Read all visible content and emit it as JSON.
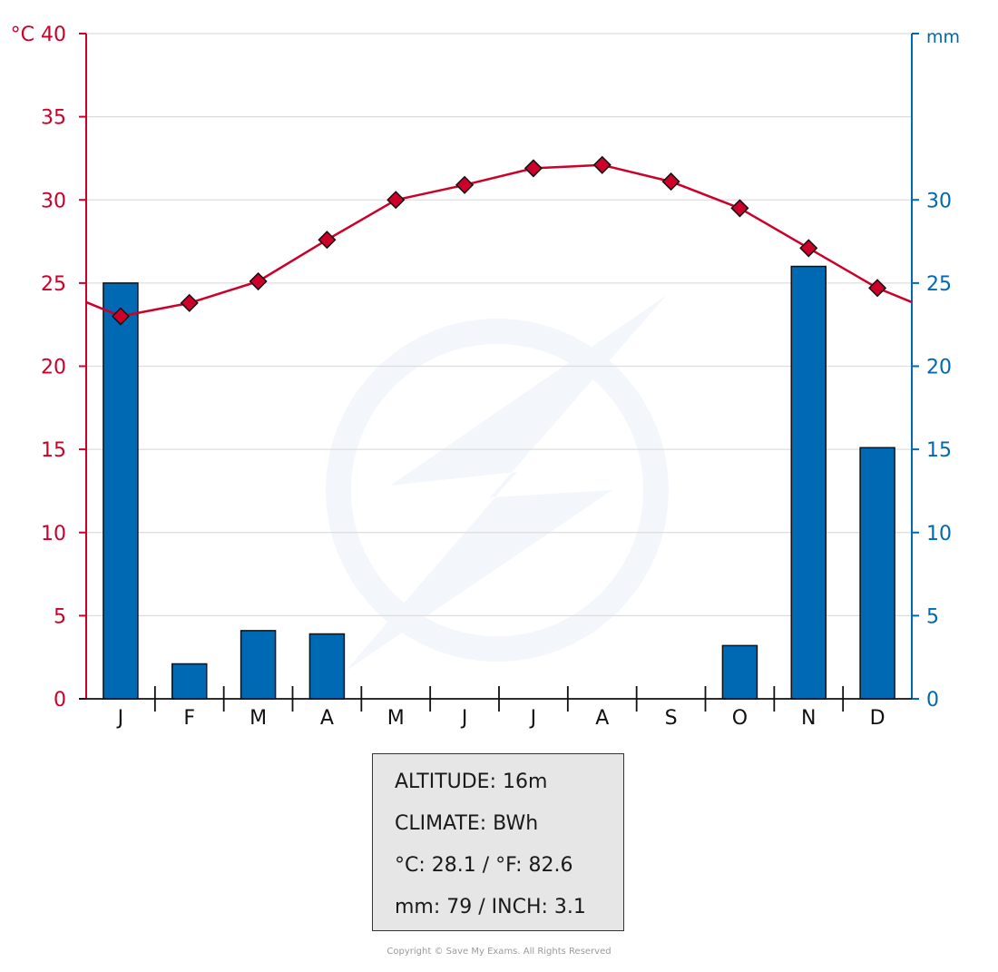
{
  "chart_data": {
    "type": "bar+line",
    "categories": [
      "J",
      "F",
      "M",
      "A",
      "M",
      "J",
      "J",
      "A",
      "S",
      "O",
      "N",
      "D"
    ],
    "temperature": {
      "unit_label": "°C",
      "values": [
        23.0,
        23.8,
        25.1,
        27.6,
        30.0,
        30.9,
        31.9,
        32.1,
        31.1,
        29.5,
        27.1,
        24.7
      ],
      "ylim": [
        0,
        40
      ],
      "ticks": [
        0,
        5,
        10,
        15,
        20,
        25,
        30,
        35,
        40
      ],
      "color": "#cc0028"
    },
    "precipitation": {
      "unit_label": "mm",
      "values": [
        25.0,
        2.1,
        4.1,
        3.9,
        0,
        0,
        0,
        0,
        0,
        3.2,
        26.0,
        15.1
      ],
      "ylim": [
        0,
        40
      ],
      "ticks": [
        0,
        5,
        10,
        15,
        20,
        25,
        30
      ],
      "color": "#0069b4"
    },
    "grid": true
  },
  "info": {
    "altitude": "ALTITUDE: 16m",
    "climate": "CLIMATE: BWh",
    "temp": "°C: 28.1 / °F: 82.6",
    "precip": "mm: 79 / INCH: 3.1"
  },
  "copyright": "Copyright © Save My Exams. All Rights Reserved"
}
